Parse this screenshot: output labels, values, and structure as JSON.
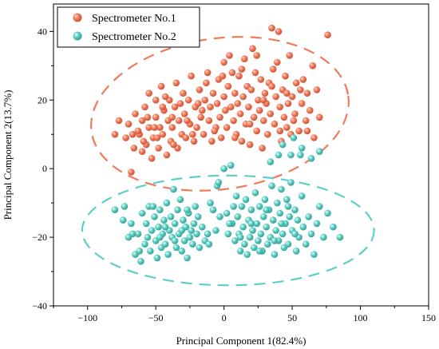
{
  "chart_data": {
    "type": "scatter",
    "xlabel": "Principal Component 1(82.4%)",
    "ylabel": "Principal Component 2(13.7%)",
    "xlim": [
      -125,
      150
    ],
    "ylim": [
      -40,
      48
    ],
    "xticks": [
      -100,
      -50,
      0,
      50,
      100,
      150
    ],
    "yticks": [
      -40,
      -20,
      0,
      20,
      40
    ],
    "legend_position": "top-left",
    "series": [
      {
        "name": "Spectrometer No.1",
        "color": "#F07A5A",
        "ellipse": {
          "cx": -3,
          "cy": 16,
          "rx": 95,
          "ry": 22,
          "angle_deg": 8
        },
        "points": [
          [
            -80,
            10
          ],
          [
            -77,
            14
          ],
          [
            -72,
            9
          ],
          [
            -70,
            13
          ],
          [
            -68,
            -1
          ],
          [
            -66,
            6
          ],
          [
            -65,
            16
          ],
          [
            -62,
            10
          ],
          [
            -60,
            14
          ],
          [
            -60,
            5
          ],
          [
            -58,
            18
          ],
          [
            -57,
            7
          ],
          [
            -55,
            12
          ],
          [
            -55,
            22
          ],
          [
            -53,
            3
          ],
          [
            -52,
            9
          ],
          [
            -50,
            15
          ],
          [
            -50,
            20
          ],
          [
            -48,
            6
          ],
          [
            -47,
            12
          ],
          [
            -46,
            24
          ],
          [
            -45,
            10
          ],
          [
            -44,
            17
          ],
          [
            -42,
            4
          ],
          [
            -41,
            14
          ],
          [
            -40,
            20
          ],
          [
            -39,
            8
          ],
          [
            -38,
            12
          ],
          [
            -36,
            18
          ],
          [
            -35,
            25
          ],
          [
            -34,
            6
          ],
          [
            -33,
            14
          ],
          [
            -31,
            10
          ],
          [
            -30,
            22
          ],
          [
            -29,
            16
          ],
          [
            -28,
            9
          ],
          [
            -26,
            20
          ],
          [
            -25,
            13
          ],
          [
            -24,
            27
          ],
          [
            -22,
            8
          ],
          [
            -21,
            18
          ],
          [
            -20,
            12
          ],
          [
            -18,
            23
          ],
          [
            -17,
            15
          ],
          [
            -15,
            10
          ],
          [
            -14,
            20
          ],
          [
            -12,
            28
          ],
          [
            -11,
            14
          ],
          [
            -10,
            18
          ],
          [
            -9,
            8
          ],
          [
            -8,
            22
          ],
          [
            -6,
            12
          ],
          [
            -5,
            19
          ],
          [
            -4,
            26
          ],
          [
            -3,
            15
          ],
          [
            -2,
            9
          ],
          [
            0,
            31
          ],
          [
            0,
            21
          ],
          [
            1,
            17
          ],
          [
            2,
            12
          ],
          [
            3,
            24
          ],
          [
            4,
            33
          ],
          [
            5,
            18
          ],
          [
            6,
            28
          ],
          [
            7,
            14
          ],
          [
            8,
            22
          ],
          [
            9,
            10
          ],
          [
            10,
            19
          ],
          [
            11,
            27
          ],
          [
            12,
            16
          ],
          [
            13,
            8
          ],
          [
            14,
            21
          ],
          [
            15,
            32
          ],
          [
            16,
            13
          ],
          [
            17,
            24
          ],
          [
            18,
            18
          ],
          [
            19,
            7
          ],
          [
            20,
            23
          ],
          [
            21,
            35
          ],
          [
            22,
            15
          ],
          [
            23,
            28
          ],
          [
            24,
            11
          ],
          [
            25,
            20
          ],
          [
            26,
            17
          ],
          [
            27,
            26
          ],
          [
            28,
            6
          ],
          [
            29,
            14
          ],
          [
            30,
            22
          ],
          [
            31,
            19
          ],
          [
            32,
            10
          ],
          [
            33,
            25
          ],
          [
            34,
            16
          ],
          [
            35,
            41
          ],
          [
            36,
            29
          ],
          [
            37,
            13
          ],
          [
            38,
            21
          ],
          [
            39,
            31
          ],
          [
            40,
            40
          ],
          [
            41,
            18
          ],
          [
            42,
            8
          ],
          [
            43,
            23
          ],
          [
            44,
            15
          ],
          [
            45,
            27
          ],
          [
            46,
            12
          ],
          [
            47,
            19
          ],
          [
            48,
            33
          ],
          [
            49,
            10
          ],
          [
            50,
            21
          ],
          [
            52,
            16
          ],
          [
            53,
            25
          ],
          [
            55,
            11
          ],
          [
            57,
            19
          ],
          [
            58,
            26
          ],
          [
            60,
            14
          ],
          [
            61,
            22
          ],
          [
            63,
            17
          ],
          [
            65,
            30
          ],
          [
            66,
            9
          ],
          [
            68,
            23
          ],
          [
            76,
            39
          ],
          [
            -63,
            11
          ],
          [
            -56,
            15
          ],
          [
            -49,
            9
          ],
          [
            -43,
            21
          ],
          [
            -37,
            7
          ],
          [
            -32,
            19
          ],
          [
            -27,
            14
          ],
          [
            -23,
            10
          ],
          [
            -16,
            17
          ],
          [
            -13,
            25
          ],
          [
            -7,
            11
          ],
          [
            -1,
            27
          ],
          [
            8,
            9
          ],
          [
            13,
            29
          ],
          [
            19,
            13
          ],
          [
            24,
            33
          ],
          [
            29,
            20
          ],
          [
            35,
            24
          ],
          [
            41,
            11
          ],
          [
            46,
            22
          ],
          [
            51,
            14
          ],
          [
            56,
            23
          ],
          [
            61,
            11
          ],
          [
            70,
            15
          ],
          [
            -67,
            10
          ],
          [
            -59,
            8
          ],
          [
            -51,
            12
          ],
          [
            -45,
            18
          ],
          [
            -38,
            15
          ],
          [
            -19,
            19
          ]
        ]
      },
      {
        "name": "Spectrometer No.2",
        "color": "#5ECFC4",
        "ellipse": {
          "cx": 3,
          "cy": -18,
          "rx": 107,
          "ry": 16,
          "angle_deg": 0
        },
        "points": [
          [
            -80,
            -12
          ],
          [
            -74,
            -15
          ],
          [
            -70,
            -20
          ],
          [
            -68,
            -16
          ],
          [
            -65,
            -25
          ],
          [
            -63,
            -19
          ],
          [
            -61,
            -27
          ],
          [
            -60,
            -13
          ],
          [
            -58,
            -22
          ],
          [
            -57,
            -16
          ],
          [
            -55,
            -11
          ],
          [
            -54,
            -24
          ],
          [
            -53,
            -18
          ],
          [
            -51,
            -14
          ],
          [
            -50,
            -21
          ],
          [
            -49,
            -26
          ],
          [
            -48,
            -17
          ],
          [
            -47,
            -12
          ],
          [
            -46,
            -23
          ],
          [
            -45,
            -19
          ],
          [
            -44,
            -15
          ],
          [
            -43,
            -22
          ],
          [
            -42,
            -10
          ],
          [
            -41,
            -25
          ],
          [
            -40,
            -18
          ],
          [
            -39,
            -14
          ],
          [
            -38,
            -20
          ],
          [
            -37,
            -6
          ],
          [
            -36,
            -16
          ],
          [
            -35,
            -23
          ],
          [
            -34,
            -12
          ],
          [
            -33,
            -19
          ],
          [
            -32,
            -9
          ],
          [
            -31,
            -24
          ],
          [
            -30,
            -15
          ],
          [
            -29,
            -21
          ],
          [
            -28,
            -17
          ],
          [
            -27,
            -26
          ],
          [
            -26,
            -13
          ],
          [
            -25,
            -20
          ],
          [
            -24,
            -18
          ],
          [
            -23,
            -22
          ],
          [
            -22,
            -16
          ],
          [
            -21,
            -11
          ],
          [
            -20,
            -19
          ],
          [
            -18,
            -23
          ],
          [
            -16,
            -17
          ],
          [
            -14,
            -21
          ],
          [
            -12,
            -19
          ],
          [
            -10,
            -10
          ],
          [
            -8,
            -12
          ],
          [
            -6,
            -18
          ],
          [
            -5,
            -5
          ],
          [
            -3,
            -14
          ],
          [
            0,
            0
          ],
          [
            2,
            -13
          ],
          [
            3,
            -19
          ],
          [
            5,
            1
          ],
          [
            6,
            -16
          ],
          [
            8,
            -21
          ],
          [
            9,
            -8
          ],
          [
            10,
            -14
          ],
          [
            11,
            -19
          ],
          [
            12,
            -24
          ],
          [
            13,
            -11
          ],
          [
            14,
            -17
          ],
          [
            15,
            -22
          ],
          [
            16,
            -9
          ],
          [
            17,
            -25
          ],
          [
            18,
            -15
          ],
          [
            19,
            -20
          ],
          [
            20,
            -12
          ],
          [
            21,
            -18
          ],
          [
            22,
            -23
          ],
          [
            23,
            -7
          ],
          [
            24,
            -16
          ],
          [
            25,
            -21
          ],
          [
            26,
            -11
          ],
          [
            27,
            -19
          ],
          [
            28,
            -24
          ],
          [
            29,
            -14
          ],
          [
            30,
            -9
          ],
          [
            31,
            -17
          ],
          [
            32,
            -22
          ],
          [
            33,
            -12
          ],
          [
            34,
            -20
          ],
          [
            35,
            -5
          ],
          [
            36,
            -15
          ],
          [
            37,
            -25
          ],
          [
            38,
            -18
          ],
          [
            39,
            -10
          ],
          [
            40,
            -21
          ],
          [
            41,
            -13
          ],
          [
            42,
            -6
          ],
          [
            43,
            -19
          ],
          [
            44,
            -23
          ],
          [
            45,
            -16
          ],
          [
            46,
            -9
          ],
          [
            47,
            -22
          ],
          [
            48,
            -14
          ],
          [
            49,
            -4
          ],
          [
            50,
            -18
          ],
          [
            52,
            -12
          ],
          [
            53,
            -24
          ],
          [
            54,
            -15
          ],
          [
            55,
            -20
          ],
          [
            57,
            -8
          ],
          [
            58,
            -17
          ],
          [
            60,
            -22
          ],
          [
            62,
            -14
          ],
          [
            64,
            -19
          ],
          [
            66,
            -25
          ],
          [
            68,
            -16
          ],
          [
            70,
            -11
          ],
          [
            73,
            -20
          ],
          [
            76,
            -13
          ],
          [
            80,
            -17
          ],
          [
            85,
            -20
          ],
          [
            40,
            4
          ],
          [
            49,
            4
          ],
          [
            56,
            4
          ],
          [
            64,
            3
          ],
          [
            43,
            7
          ],
          [
            51,
            9
          ],
          [
            57,
            6
          ],
          [
            70,
            5
          ],
          [
            34,
            2
          ],
          [
            -73,
            -11
          ],
          [
            -67,
            -19
          ],
          [
            -62,
            -24
          ],
          [
            -56,
            -20
          ],
          [
            -52,
            -11
          ],
          [
            -47,
            -20
          ],
          [
            -43,
            -17
          ],
          [
            -36,
            -21
          ],
          [
            -31,
            -18
          ],
          [
            -27,
            -12
          ],
          [
            -19,
            -14
          ],
          [
            -11,
            -22
          ],
          [
            -4,
            -4
          ],
          [
            4,
            -16
          ],
          [
            7,
            -11
          ],
          [
            12,
            -20
          ],
          [
            20,
            -16
          ],
          [
            26,
            -24
          ],
          [
            31,
            -12
          ],
          [
            37,
            -21
          ],
          [
            42,
            -16
          ],
          [
            47,
            -11
          ],
          [
            52,
            -19
          ]
        ]
      }
    ]
  }
}
